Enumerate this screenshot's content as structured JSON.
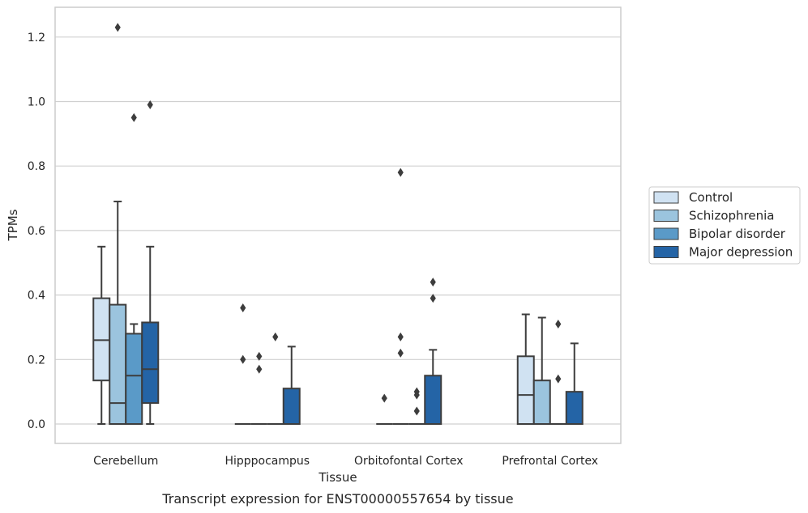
{
  "chart_data": {
    "type": "box",
    "title": "",
    "caption": "Transcript expression for ENST00000557654 by tissue",
    "xlabel": "Tissue",
    "ylabel": "TPMs",
    "ylim": [
      -0.06,
      1.29
    ],
    "yticks": [
      "0.0",
      "0.2",
      "0.4",
      "0.6",
      "0.8",
      "1.0",
      "1.2"
    ],
    "grid": "horizontal",
    "legend_position": "right",
    "categories": [
      "Cerebellum",
      "Hipppocampus",
      "Orbitofontal Cortex",
      "Prefrontal Cortex"
    ],
    "series": [
      {
        "name": "Control",
        "color": "#d0e2f2",
        "boxes": [
          {
            "min": 0.0,
            "q1": 0.135,
            "median": 0.26,
            "q3": 0.39,
            "max": 0.55,
            "outliers": []
          },
          {
            "min": 0.0,
            "q1": 0.0,
            "median": 0.0,
            "q3": 0.0,
            "max": 0.0,
            "outliers": [
              0.36,
              0.2
            ]
          },
          {
            "min": 0.0,
            "q1": 0.0,
            "median": 0.0,
            "q3": 0.0,
            "max": 0.0,
            "outliers": [
              0.08
            ]
          },
          {
            "min": 0.0,
            "q1": 0.0,
            "median": 0.09,
            "q3": 0.21,
            "max": 0.34,
            "outliers": []
          }
        ]
      },
      {
        "name": "Schizophrenia",
        "color": "#9bc4de",
        "boxes": [
          {
            "min": 0.0,
            "q1": 0.0,
            "median": 0.065,
            "q3": 0.37,
            "max": 0.69,
            "outliers": [
              1.23
            ]
          },
          {
            "min": 0.0,
            "q1": 0.0,
            "median": 0.0,
            "q3": 0.0,
            "max": 0.0,
            "outliers": [
              0.21,
              0.17
            ]
          },
          {
            "min": 0.0,
            "q1": 0.0,
            "median": 0.0,
            "q3": 0.0,
            "max": 0.0,
            "outliers": [
              0.78,
              0.27,
              0.22
            ]
          },
          {
            "min": 0.0,
            "q1": 0.0,
            "median": 0.0,
            "q3": 0.135,
            "max": 0.33,
            "outliers": []
          }
        ]
      },
      {
        "name": "Bipolar disorder",
        "color": "#5a9ac8",
        "boxes": [
          {
            "min": 0.0,
            "q1": 0.0,
            "median": 0.15,
            "q3": 0.28,
            "max": 0.31,
            "outliers": [
              0.95
            ]
          },
          {
            "min": 0.0,
            "q1": 0.0,
            "median": 0.0,
            "q3": 0.0,
            "max": 0.0,
            "outliers": [
              0.27
            ]
          },
          {
            "min": 0.0,
            "q1": 0.0,
            "median": 0.0,
            "q3": 0.0,
            "max": 0.0,
            "outliers": [
              0.1,
              0.09,
              0.04
            ]
          },
          {
            "min": 0.0,
            "q1": 0.0,
            "median": 0.0,
            "q3": 0.0,
            "max": 0.0,
            "outliers": [
              0.31,
              0.14
            ]
          }
        ]
      },
      {
        "name": "Major depression",
        "color": "#2464a6",
        "boxes": [
          {
            "min": 0.0,
            "q1": 0.065,
            "median": 0.17,
            "q3": 0.315,
            "max": 0.55,
            "outliers": [
              0.99
            ]
          },
          {
            "min": 0.0,
            "q1": 0.0,
            "median": 0.0,
            "q3": 0.11,
            "max": 0.24,
            "outliers": []
          },
          {
            "min": 0.0,
            "q1": 0.0,
            "median": 0.0,
            "q3": 0.15,
            "max": 0.23,
            "outliers": [
              0.44,
              0.39
            ]
          },
          {
            "min": 0.0,
            "q1": 0.0,
            "median": 0.0,
            "q3": 0.1,
            "max": 0.25,
            "outliers": []
          }
        ]
      }
    ]
  },
  "colors": {
    "edge": "#3d3d3d",
    "grid": "#d0d0d0",
    "frame": "#cccccc"
  }
}
